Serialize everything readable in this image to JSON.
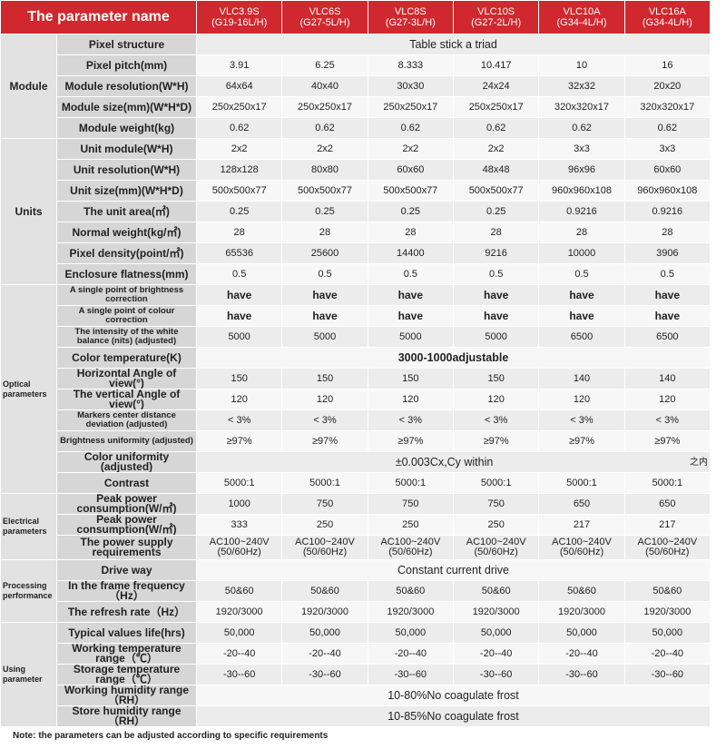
{
  "header": {
    "title": "The parameter name",
    "models": [
      {
        "name": "VLC3.9S",
        "code": "(G19-16L/H)"
      },
      {
        "name": "VLC6S",
        "code": "(G27-5L/H)"
      },
      {
        "name": "VLC8S",
        "code": "(G27-3L/H)"
      },
      {
        "name": "VLC10S",
        "code": "(G27-2L/H)"
      },
      {
        "name": "VLC10A",
        "code": "(G34-4L/H)"
      },
      {
        "name": "VLC16A",
        "code": "(G34-4L/H)"
      }
    ]
  },
  "groups": [
    {
      "label": "Module",
      "rows": [
        {
          "param": "Pixel structure",
          "span": "Table stick a triad"
        },
        {
          "param": "Pixel pitch(mm)",
          "values": [
            "3.91",
            "6.25",
            "8.333",
            "10.417",
            "10",
            "16"
          ]
        },
        {
          "param": "Module resolution(W*H)",
          "values": [
            "64x64",
            "40x40",
            "30x30",
            "24x24",
            "32x32",
            "20x20"
          ]
        },
        {
          "param": "Module size(mm)(W*H*D)",
          "values": [
            "250x250x17",
            "250x250x17",
            "250x250x17",
            "250x250x17",
            "320x320x17",
            "320x320x17"
          ]
        },
        {
          "param": "Module weight(kg)",
          "values": [
            "0.62",
            "0.62",
            "0.62",
            "0.62",
            "0.62",
            "0.62"
          ]
        }
      ]
    },
    {
      "label": "Units",
      "rows": [
        {
          "param": "Unit module(W*H)",
          "values": [
            "2x2",
            "2x2",
            "2x2",
            "2x2",
            "3x3",
            "3x3"
          ]
        },
        {
          "param": "Unit resolution(W*H)",
          "values": [
            "128x128",
            "80x80",
            "60x60",
            "48x48",
            "96x96",
            "60x60"
          ]
        },
        {
          "param": "Unit size(mm)(W*H*D)",
          "values": [
            "500x500x77",
            "500x500x77",
            "500x500x77",
            "500x500x77",
            "960x960x108",
            "960x960x108"
          ]
        },
        {
          "param": "The unit area(㎡)",
          "values": [
            "0.25",
            "0.25",
            "0.25",
            "0.25",
            "0.9216",
            "0.9216"
          ]
        },
        {
          "param": "Normal weight(kg/㎡)",
          "values": [
            "28",
            "28",
            "28",
            "28",
            "28",
            "28"
          ]
        },
        {
          "param": "Pixel density(point/㎡)",
          "values": [
            "65536",
            "25600",
            "14400",
            "9216",
            "10000",
            "3906"
          ]
        },
        {
          "param": "Enclosure flatness(mm)",
          "values": [
            "0.5",
            "0.5",
            "0.5",
            "0.5",
            "0.5",
            "0.5"
          ]
        }
      ]
    },
    {
      "label": "Optical parameters",
      "rows": [
        {
          "param": "A single point of brightness correction",
          "values": [
            "have",
            "have",
            "have",
            "have",
            "have",
            "have"
          ],
          "bold": true
        },
        {
          "param": "A single point of colour correction",
          "values": [
            "have",
            "have",
            "have",
            "have",
            "have",
            "have"
          ],
          "bold": true
        },
        {
          "param": "The intensity of the white balance (nits) (adjusted)",
          "values": [
            "5000",
            "5000",
            "5000",
            "5000",
            "6500",
            "6500"
          ]
        },
        {
          "param": "Color temperature(K)",
          "span": "3000-1000adjustable",
          "bold": true
        },
        {
          "param": "Horizontal Angle of view(°)",
          "values": [
            "150",
            "150",
            "150",
            "150",
            "140",
            "140"
          ]
        },
        {
          "param": "The vertical Angle of view(°)",
          "values": [
            "120",
            "120",
            "120",
            "120",
            "120",
            "120"
          ]
        },
        {
          "param": "Markers center distance deviation (adjusted)",
          "values": [
            "< 3%",
            "< 3%",
            "< 3%",
            "< 3%",
            "< 3%",
            "< 3%"
          ]
        },
        {
          "param": "Brightness uniformity (adjusted)",
          "values": [
            "≥97%",
            "≥97%",
            "≥97%",
            "≥97%",
            "≥97%",
            "≥97%"
          ]
        },
        {
          "param": "Color uniformity (adjusted)",
          "span": "±0.003Cx,Cy  within",
          "suffix": "之内"
        },
        {
          "param": "Contrast",
          "values": [
            "5000:1",
            "5000:1",
            "5000:1",
            "5000:1",
            "5000:1",
            "5000:1"
          ]
        }
      ]
    },
    {
      "label": "Electrical parameters",
      "rows": [
        {
          "param": "Peak power consumption(W/㎡)",
          "values": [
            "1000",
            "750",
            "750",
            "750",
            "650",
            "650"
          ]
        },
        {
          "param": "Peak power consumption(W/㎡)",
          "values": [
            "333",
            "250",
            "250",
            "250",
            "217",
            "217"
          ]
        },
        {
          "param": "The power supply requirements",
          "values": [
            "AC100~240V\n(50/60Hz)",
            "AC100~240V\n(50/60Hz)",
            "AC100~240V\n(50/60Hz)",
            "AC100~240V\n(50/60Hz)",
            "AC100~240V\n(50/60Hz)",
            "AC100~240V\n(50/60Hz)"
          ]
        }
      ]
    },
    {
      "label": "Processing performance",
      "rows": [
        {
          "param": "Drive way",
          "span": "Constant current drive"
        },
        {
          "param": "In the frame frequency（Hz）",
          "values": [
            "50&60",
            "50&60",
            "50&60",
            "50&60",
            "50&60",
            "50&60"
          ]
        },
        {
          "param": "The refresh rate（Hz）",
          "values": [
            "1920/3000",
            "1920/3000",
            "1920/3000",
            "1920/3000",
            "1920/3000",
            "1920/3000"
          ]
        }
      ]
    },
    {
      "label": "Using parameter",
      "rows": [
        {
          "param": "Typical values life(hrs)",
          "values": [
            "50,000",
            "50,000",
            "50,000",
            "50,000",
            "50,000",
            "50,000"
          ]
        },
        {
          "param": "Working temperature range（℃）",
          "values": [
            "-20--40",
            "-20--40",
            "-20--40",
            "-20--40",
            "-20--40",
            "-20--40"
          ]
        },
        {
          "param": "Storage temperature range（℃）",
          "values": [
            "-30--60",
            "-30--60",
            "-30--60",
            "-30--60",
            "-30--60",
            "-30--60"
          ]
        },
        {
          "param": "Working humidity range（RH）",
          "span": "10-80%No coagulate frost"
        },
        {
          "param": "Store humidity range（RH）",
          "span": "10-85%No coagulate frost"
        }
      ]
    }
  ],
  "note": "Note: the parameters can be adjusted according to specific requirements"
}
